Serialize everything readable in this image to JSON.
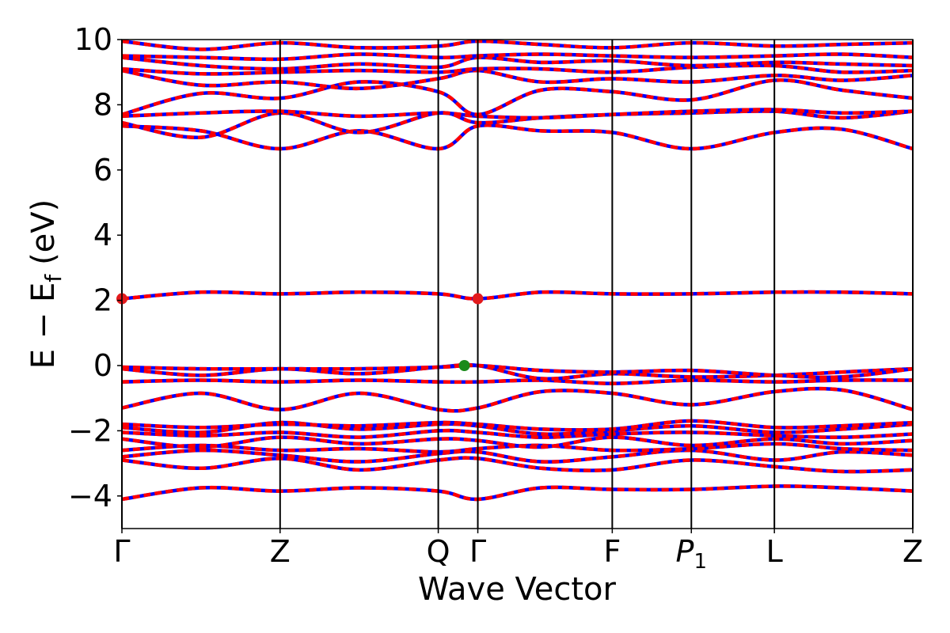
{
  "chart_data": {
    "type": "line",
    "xlabel": "Wave Vector",
    "ylabel": "E  −  E",
    "ylabel_subscript": "f",
    "ylabel_unit": "(eV)",
    "ylim": [
      -5,
      10
    ],
    "y_ticks": [
      {
        "value": -4,
        "label": "−4"
      },
      {
        "value": -2,
        "label": "−2"
      },
      {
        "value": 0,
        "label": "0"
      },
      {
        "value": 2,
        "label": "2"
      },
      {
        "value": 4,
        "label": "4"
      },
      {
        "value": 6,
        "label": "6"
      },
      {
        "value": 8,
        "label": "8"
      },
      {
        "value": 10,
        "label": "10"
      }
    ],
    "xlim": [
      0,
      10
    ],
    "k_points": [
      {
        "label": "Γ",
        "position": 0.0
      },
      {
        "label": "Z",
        "position": 2.0
      },
      {
        "label": "Q",
        "position": 4.0
      },
      {
        "label": "Γ",
        "position": 4.5
      },
      {
        "label": "F",
        "position": 6.2
      },
      {
        "label": "P",
        "subscript": "1",
        "position": 7.2
      },
      {
        "label": "L",
        "position": 8.25
      },
      {
        "label": "Z",
        "position": 10.0
      }
    ],
    "series": [
      {
        "color": "#0000ff",
        "style": "solid"
      },
      {
        "color": "#ff0000",
        "style": "dashed"
      }
    ],
    "bands": [
      {
        "x": [
          0,
          1,
          2,
          3,
          4,
          4.5,
          5.3,
          6.2,
          7.2,
          8.25,
          9.1,
          10
        ],
        "e": [
          -4.1,
          -3.75,
          -3.85,
          -3.75,
          -3.85,
          -4.1,
          -3.75,
          -3.8,
          -3.8,
          -3.7,
          -3.75,
          -3.85
        ]
      },
      {
        "x": [
          0,
          1,
          2,
          3,
          4,
          4.5,
          5.3,
          6.2,
          7.2,
          8.25,
          9.1,
          10
        ],
        "e": [
          -2.9,
          -3.15,
          -2.85,
          -3.2,
          -2.9,
          -2.85,
          -3.15,
          -3.2,
          -2.9,
          -3.1,
          -3.25,
          -3.2
        ]
      },
      {
        "x": [
          0,
          1,
          2,
          3,
          4,
          4.5,
          5.3,
          6.2,
          7.2,
          8.25,
          9.1,
          10
        ],
        "e": [
          -2.8,
          -2.6,
          -2.75,
          -2.95,
          -2.7,
          -2.65,
          -2.95,
          -2.8,
          -2.6,
          -2.9,
          -2.65,
          -2.75
        ]
      },
      {
        "x": [
          0,
          1,
          2,
          3,
          4,
          4.5,
          5.3,
          6.2,
          7.2,
          8.25,
          9.1,
          10
        ],
        "e": [
          -2.6,
          -2.45,
          -2.6,
          -2.55,
          -2.65,
          -2.55,
          -2.45,
          -2.6,
          -2.55,
          -2.4,
          -2.55,
          -2.6
        ]
      },
      {
        "x": [
          0,
          1,
          2,
          3,
          4,
          4.5,
          5.3,
          6.2,
          7.2,
          8.25,
          9.1,
          10
        ],
        "e": [
          -2.25,
          -2.5,
          -2.2,
          -2.4,
          -2.25,
          -2.3,
          -2.5,
          -2.2,
          -2.45,
          -2.25,
          -2.4,
          -2.3
        ]
      },
      {
        "x": [
          0,
          1,
          2,
          3,
          4,
          4.5,
          5.3,
          6.2,
          7.2,
          8.25,
          9.1,
          10
        ],
        "e": [
          -2.05,
          -2.15,
          -2.05,
          -2.2,
          -2.0,
          -2.05,
          -2.2,
          -2.1,
          -2.05,
          -2.15,
          -2.2,
          -2.1
        ]
      },
      {
        "x": [
          0,
          1,
          2,
          3,
          4,
          4.5,
          5.3,
          6.2,
          7.2,
          8.25,
          9.1,
          10
        ],
        "e": [
          -1.9,
          -2.05,
          -1.75,
          -1.95,
          -1.8,
          -1.85,
          -2.1,
          -2.0,
          -1.85,
          -2.05,
          -1.95,
          -1.8
        ]
      },
      {
        "x": [
          0,
          1,
          2,
          3,
          4,
          4.5,
          5.3,
          6.2,
          7.2,
          8.25,
          9.1,
          10
        ],
        "e": [
          -1.8,
          -1.9,
          -1.8,
          -1.85,
          -1.75,
          -1.8,
          -1.95,
          -1.95,
          -1.7,
          -1.9,
          -1.85,
          -1.75
        ]
      },
      {
        "x": [
          0,
          1,
          2,
          3,
          4,
          4.5,
          5.3,
          6.2,
          7.2,
          8.25,
          9.1,
          10
        ],
        "e": [
          -1.3,
          -0.85,
          -1.35,
          -0.85,
          -1.35,
          -1.3,
          -0.8,
          -0.85,
          -1.2,
          -0.8,
          -0.75,
          -1.35
        ]
      },
      {
        "x": [
          0,
          1,
          2,
          3,
          4,
          4.5,
          5.3,
          6.2,
          7.2,
          8.25,
          9.1,
          10
        ],
        "e": [
          -0.5,
          -0.45,
          -0.5,
          -0.45,
          -0.5,
          -0.5,
          -0.45,
          -0.55,
          -0.45,
          -0.5,
          -0.45,
          -0.45
        ]
      },
      {
        "x": [
          0,
          1,
          2,
          3,
          4,
          4.5,
          5.3,
          6.2,
          7.2,
          8.25,
          9.1,
          10
        ],
        "e": [
          -0.1,
          -0.3,
          -0.1,
          -0.25,
          -0.05,
          0.0,
          -0.4,
          -0.25,
          -0.35,
          -0.3,
          -0.2,
          -0.1
        ]
      },
      {
        "x": [
          0,
          1,
          2,
          3,
          4,
          4.5,
          5.3,
          6.2,
          7.2,
          8.25,
          9.1,
          10
        ],
        "e": [
          -0.05,
          -0.1,
          -0.1,
          -0.1,
          -0.05,
          0.0,
          -0.15,
          -0.2,
          -0.15,
          -0.3,
          -0.35,
          -0.1
        ]
      },
      {
        "x": [
          0,
          1,
          2,
          3,
          4,
          4.5,
          5.3,
          6.2,
          7.2,
          8.25,
          9.1,
          10
        ],
        "e": [
          2.05,
          2.25,
          2.2,
          2.25,
          2.2,
          2.05,
          2.25,
          2.2,
          2.2,
          2.25,
          2.25,
          2.2
        ]
      },
      {
        "x": [
          0,
          1,
          2,
          3,
          4,
          4.5,
          5.3,
          6.2,
          7.2,
          8.25,
          9.1,
          10
        ],
        "e": [
          7.35,
          7.2,
          6.65,
          7.2,
          6.65,
          7.35,
          7.2,
          7.15,
          6.65,
          7.15,
          7.25,
          6.65
        ]
      },
      {
        "x": [
          0,
          1,
          2,
          3,
          4,
          4.5,
          5.3,
          6.2,
          7.2,
          8.25,
          9.1,
          10
        ],
        "e": [
          7.45,
          7.0,
          7.75,
          7.15,
          7.75,
          7.45,
          7.6,
          7.7,
          7.75,
          7.8,
          7.6,
          7.8
        ]
      },
      {
        "x": [
          0,
          1,
          2,
          3,
          4,
          4.5,
          5.3,
          6.2,
          7.2,
          8.25,
          9.1,
          10
        ],
        "e": [
          7.65,
          7.75,
          7.8,
          7.65,
          7.75,
          7.65,
          7.6,
          7.7,
          7.8,
          7.85,
          7.75,
          7.8
        ]
      },
      {
        "x": [
          0,
          1,
          2,
          3,
          4,
          4.5,
          5.3,
          6.2,
          7.2,
          8.25,
          9.1,
          10
        ],
        "e": [
          7.7,
          8.35,
          8.2,
          8.7,
          8.4,
          7.7,
          8.45,
          8.4,
          8.15,
          8.75,
          8.45,
          8.2
        ]
      },
      {
        "x": [
          0,
          1,
          2,
          3,
          4,
          4.5,
          5.3,
          6.2,
          7.2,
          8.25,
          9.1,
          10
        ],
        "e": [
          9.05,
          8.6,
          8.7,
          8.5,
          8.8,
          9.05,
          8.7,
          8.8,
          8.7,
          8.9,
          8.75,
          8.9
        ]
      },
      {
        "x": [
          0,
          1,
          2,
          3,
          4,
          4.5,
          5.3,
          6.2,
          7.2,
          8.25,
          9.1,
          10
        ],
        "e": [
          9.1,
          8.95,
          9.0,
          9.05,
          9.0,
          9.1,
          9.1,
          9.0,
          9.15,
          9.2,
          9.0,
          9.05
        ]
      },
      {
        "x": [
          0,
          1,
          2,
          3,
          4,
          4.5,
          5.3,
          6.2,
          7.2,
          8.25,
          9.1,
          10
        ],
        "e": [
          9.45,
          9.2,
          9.1,
          9.25,
          9.15,
          9.45,
          9.3,
          9.35,
          9.2,
          9.3,
          9.25,
          9.2
        ]
      },
      {
        "x": [
          0,
          1,
          2,
          3,
          4,
          4.5,
          5.3,
          6.2,
          7.2,
          8.25,
          9.1,
          10
        ],
        "e": [
          9.5,
          9.45,
          9.4,
          9.55,
          9.45,
          9.5,
          9.55,
          9.5,
          9.45,
          9.5,
          9.55,
          9.45
        ]
      },
      {
        "x": [
          0,
          1,
          2,
          3,
          4,
          4.5,
          5.3,
          6.2,
          7.2,
          8.25,
          9.1,
          10
        ],
        "e": [
          9.95,
          9.7,
          9.9,
          9.75,
          9.8,
          9.95,
          9.85,
          9.75,
          9.9,
          9.8,
          9.85,
          9.9
        ]
      }
    ],
    "markers": [
      {
        "x": 0.0,
        "y": 2.05,
        "color": "#e31a1c",
        "kind": "cbm"
      },
      {
        "x": 4.5,
        "y": 2.05,
        "color": "#e31a1c",
        "kind": "cbm"
      },
      {
        "x": 4.33,
        "y": 0.0,
        "color": "#1a8a1a",
        "kind": "vbm"
      }
    ],
    "grid": false,
    "legend": "none"
  }
}
